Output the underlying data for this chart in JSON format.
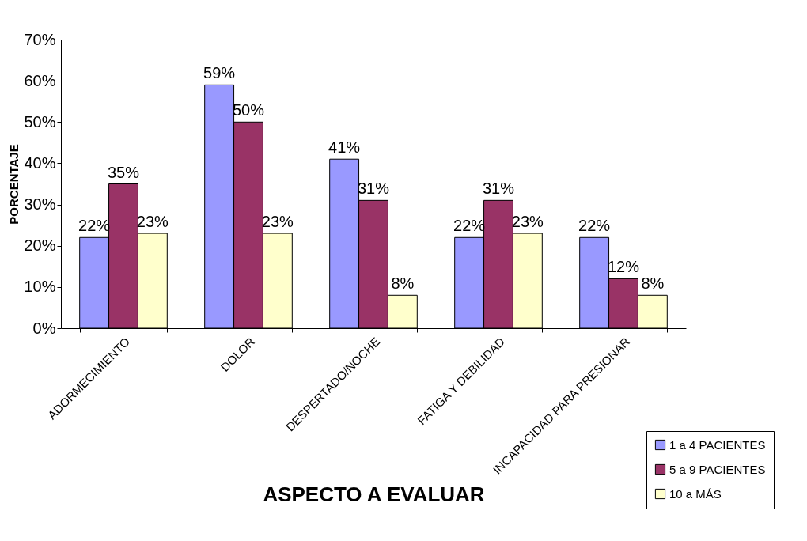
{
  "chart_data": {
    "type": "bar",
    "xlabel": "ASPECTO A EVALUAR",
    "ylabel": "PORCENTAJE",
    "categories": [
      "ADORMECIMIENTO",
      "DOLOR",
      "DESPERTADO/NOCHE",
      "FATIGA Y DEBILIDAD",
      "INCAPACIDAD PARA PRESIONAR"
    ],
    "series": [
      {
        "name": "1 a 4 PACIENTES",
        "color": "#9999ff",
        "values": [
          22,
          59,
          41,
          22,
          22
        ],
        "value_labels": [
          "22%",
          "59%",
          "41%",
          "22%",
          "22%"
        ]
      },
      {
        "name": "5 a 9 PACIENTES",
        "color": "#993366",
        "values": [
          35,
          50,
          31,
          31,
          12
        ],
        "value_labels": [
          "35%",
          "50%",
          "31%",
          "31%",
          "12%"
        ]
      },
      {
        "name": "10 a MÁS",
        "color": "#ffffcc",
        "values": [
          23,
          23,
          8,
          23,
          8
        ],
        "value_labels": [
          "23%",
          "23%",
          "8%",
          "23%",
          "8%"
        ]
      }
    ],
    "ylim": [
      0,
      70
    ],
    "yticks": [
      {
        "value": 0,
        "label": "0%"
      },
      {
        "value": 10,
        "label": "10%"
      },
      {
        "value": 20,
        "label": "20%"
      },
      {
        "value": 30,
        "label": "30%"
      },
      {
        "value": 40,
        "label": "40%"
      },
      {
        "value": 50,
        "label": "50%"
      },
      {
        "value": 60,
        "label": "60%"
      },
      {
        "value": 70,
        "label": "70%"
      }
    ],
    "grid": false,
    "legend": "bottom right"
  }
}
